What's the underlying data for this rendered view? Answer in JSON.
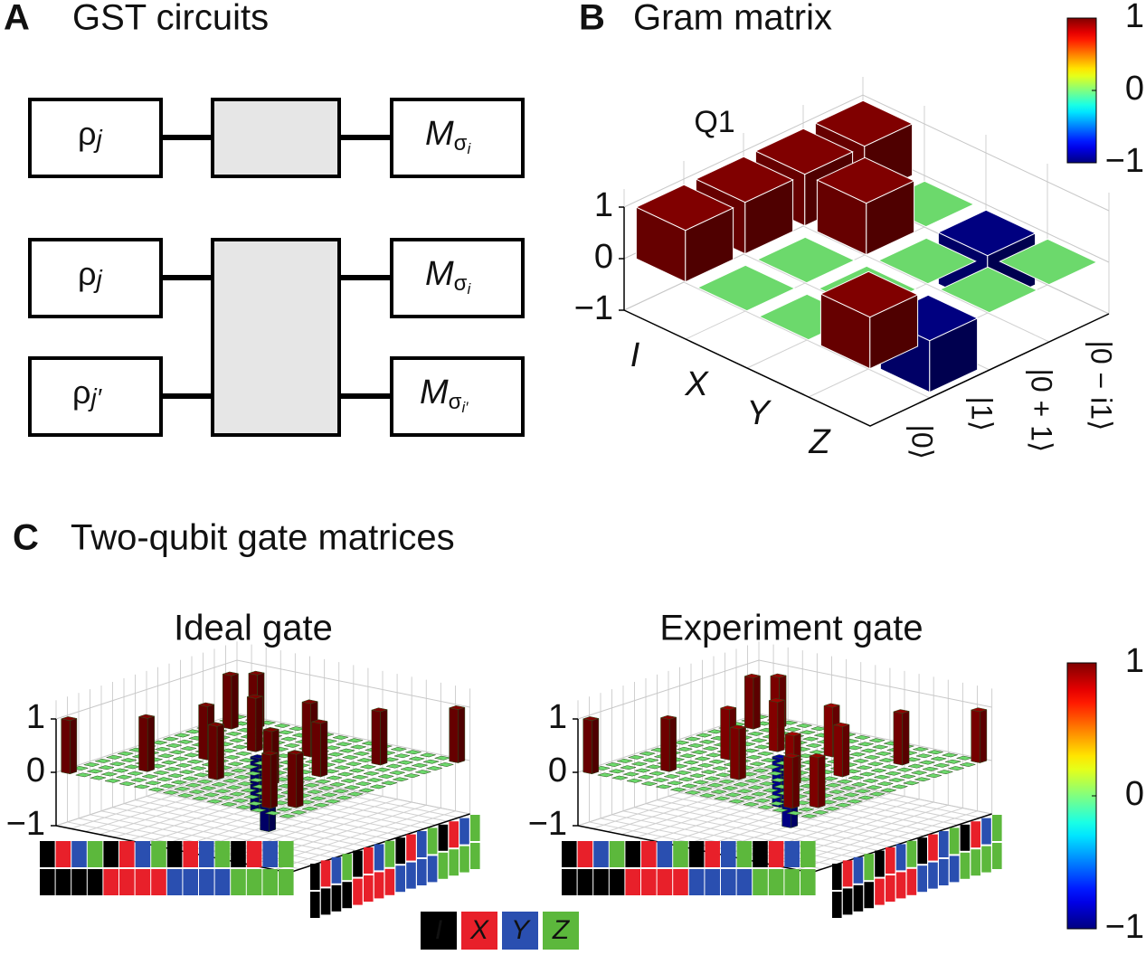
{
  "panel_a": {
    "label": "A",
    "title": "GST circuits",
    "circuits": [
      {
        "preps": [
          {
            "base": "ρ",
            "sub": "j"
          }
        ],
        "meas": [
          {
            "base": "M",
            "sub": "σ",
            "subsub": "i"
          }
        ]
      },
      {
        "preps": [
          {
            "base": "ρ",
            "sub": "j"
          },
          {
            "base": "ρ",
            "sub": "j′"
          }
        ],
        "meas": [
          {
            "base": "M",
            "sub": "σ",
            "subsub": "i"
          },
          {
            "base": "M",
            "sub": "σ",
            "subsub": "i′"
          }
        ]
      }
    ]
  },
  "panel_b": {
    "label": "B",
    "title": "Gram matrix"
  },
  "panel_c": {
    "label": "C",
    "title": "Two-qubit gate matrices",
    "pauli_legend": [
      {
        "name": "I",
        "color": "#000000"
      },
      {
        "name": "X",
        "color": "#e8202a"
      },
      {
        "name": "Y",
        "color": "#2a4fb0"
      },
      {
        "name": "Z",
        "color": "#5cb83c"
      }
    ]
  },
  "chart_data": [
    {
      "type": "bar3d",
      "title": "Q1",
      "colormap": "jet",
      "row_categories": [
        "I",
        "X",
        "Y",
        "Z"
      ],
      "col_categories": [
        "|0⟩",
        "|1⟩",
        "|0 + 1⟩",
        "|0 − i1⟩"
      ],
      "values": [
        [
          1,
          1,
          1,
          1
        ],
        [
          0,
          0,
          1,
          0
        ],
        [
          0,
          0,
          0,
          -1
        ],
        [
          1,
          -1,
          0,
          0
        ]
      ],
      "zlim": [
        -1,
        1
      ],
      "zticks": [
        1,
        0,
        {
          "value": -1,
          "label": "−1"
        }
      ],
      "clim": [
        -1,
        1
      ],
      "cticks": [
        1,
        0,
        {
          "value": -1,
          "label": "−1"
        }
      ]
    },
    {
      "type": "bar3d",
      "title": "Ideal gate",
      "colormap": "jet",
      "values": [
        [
          1,
          0,
          0,
          0,
          0,
          0,
          0,
          0,
          0,
          0,
          0,
          0,
          0,
          0,
          0,
          0
        ],
        [
          0,
          0,
          0,
          0,
          0,
          0,
          0,
          0,
          0,
          0,
          0,
          0,
          0,
          1,
          0,
          0
        ],
        [
          0,
          0,
          0,
          0,
          0,
          0,
          0,
          0,
          0,
          0,
          0,
          0,
          0,
          0,
          1,
          0
        ],
        [
          0,
          0,
          0,
          1,
          0,
          0,
          0,
          0,
          0,
          0,
          0,
          0,
          0,
          0,
          0,
          0
        ],
        [
          0,
          0,
          0,
          0,
          0,
          0,
          0,
          1,
          0,
          0,
          0,
          0,
          0,
          0,
          0,
          0
        ],
        [
          0,
          0,
          0,
          0,
          0,
          0,
          0,
          0,
          0,
          0,
          1,
          0,
          0,
          0,
          0,
          0
        ],
        [
          0,
          0,
          0,
          0,
          0,
          0,
          0,
          0,
          0,
          -1,
          0,
          0,
          0,
          0,
          0,
          0
        ],
        [
          0,
          0,
          0,
          0,
          1,
          0,
          0,
          0,
          0,
          0,
          0,
          0,
          0,
          0,
          0,
          0
        ],
        [
          0,
          0,
          0,
          0,
          0,
          0,
          0,
          0,
          0,
          0,
          0,
          1,
          0,
          0,
          0,
          0
        ],
        [
          0,
          0,
          0,
          0,
          0,
          0,
          -1,
          0,
          0,
          0,
          0,
          0,
          0,
          0,
          0,
          0
        ],
        [
          0,
          0,
          0,
          0,
          0,
          1,
          0,
          0,
          0,
          0,
          0,
          0,
          0,
          0,
          0,
          0
        ],
        [
          0,
          0,
          0,
          0,
          0,
          0,
          0,
          0,
          1,
          0,
          0,
          0,
          0,
          0,
          0,
          0
        ],
        [
          0,
          0,
          0,
          0,
          0,
          0,
          0,
          0,
          0,
          0,
          0,
          0,
          1,
          0,
          0,
          0
        ],
        [
          0,
          1,
          0,
          0,
          0,
          0,
          0,
          0,
          0,
          0,
          0,
          0,
          0,
          0,
          0,
          0
        ],
        [
          0,
          0,
          1,
          0,
          0,
          0,
          0,
          0,
          0,
          0,
          0,
          0,
          0,
          0,
          0,
          0
        ],
        [
          0,
          0,
          0,
          0,
          0,
          0,
          0,
          0,
          0,
          0,
          0,
          0,
          0,
          0,
          0,
          1
        ]
      ],
      "zlim": [
        -1,
        1
      ],
      "zticks": [
        1,
        0,
        {
          "value": -1,
          "label": "−1"
        }
      ]
    },
    {
      "type": "bar3d",
      "title": "Experiment gate",
      "colormap": "jet",
      "values": [
        [
          1,
          0,
          0,
          0,
          0,
          0,
          0,
          0,
          0,
          0,
          0,
          0,
          0,
          0,
          0,
          0
        ],
        [
          0,
          0,
          0,
          0,
          0,
          0,
          0,
          0,
          0,
          0,
          0,
          0,
          0,
          0.96,
          0,
          0
        ],
        [
          0,
          0,
          0,
          0,
          0,
          0,
          0,
          0,
          0,
          0,
          0,
          0,
          0,
          0,
          0.95,
          0
        ],
        [
          0,
          0,
          0,
          0.98,
          0,
          0,
          0,
          0,
          0,
          0,
          0,
          0,
          0,
          0,
          0,
          0
        ],
        [
          0,
          0,
          0,
          0,
          0,
          0,
          0,
          0.94,
          0,
          0,
          0,
          0,
          0,
          0,
          0,
          0
        ],
        [
          0,
          0,
          0,
          0,
          0,
          0,
          0,
          0,
          0,
          0,
          0.93,
          0,
          0,
          0,
          0,
          0
        ],
        [
          0,
          0,
          0,
          0,
          0,
          0,
          0,
          0,
          0,
          -0.92,
          0,
          0,
          0,
          0,
          0,
          0
        ],
        [
          0,
          0,
          0,
          0,
          0.95,
          0,
          0,
          0,
          0,
          0,
          0,
          0,
          0,
          0,
          0,
          0
        ],
        [
          0,
          0,
          0,
          0,
          0,
          0,
          0,
          0,
          0,
          0,
          0,
          0.93,
          0,
          0,
          0,
          0
        ],
        [
          0,
          0,
          0,
          0,
          0,
          0,
          -0.93,
          0,
          0,
          0,
          0,
          0,
          0,
          0,
          0,
          0
        ],
        [
          0,
          0,
          0,
          0,
          0,
          0.92,
          0,
          0,
          0,
          0,
          0,
          0,
          0,
          0,
          0,
          0
        ],
        [
          0,
          0,
          0,
          0,
          0,
          0,
          0,
          0,
          0.94,
          0,
          0,
          0,
          0,
          0,
          0,
          0
        ],
        [
          0,
          0,
          0,
          0,
          0,
          0,
          0,
          0,
          0,
          0,
          0,
          0,
          0.97,
          0,
          0,
          0
        ],
        [
          0,
          0.95,
          0,
          0,
          0,
          0,
          0,
          0,
          0,
          0,
          0,
          0,
          0,
          0,
          0,
          0
        ],
        [
          0,
          0,
          0.94,
          0,
          0,
          0,
          0,
          0,
          0,
          0,
          0,
          0,
          0,
          0,
          0,
          0
        ],
        [
          0,
          0,
          0,
          0,
          0,
          0,
          0,
          0,
          0,
          0,
          0,
          0,
          0,
          0,
          0,
          0.96
        ]
      ],
      "zlim": [
        -1,
        1
      ],
      "zticks": [
        1,
        0,
        {
          "value": -1,
          "label": "−1"
        }
      ],
      "clim": [
        -1,
        1
      ],
      "cticks": [
        1,
        0,
        {
          "value": -1,
          "label": "−1"
        }
      ]
    }
  ]
}
